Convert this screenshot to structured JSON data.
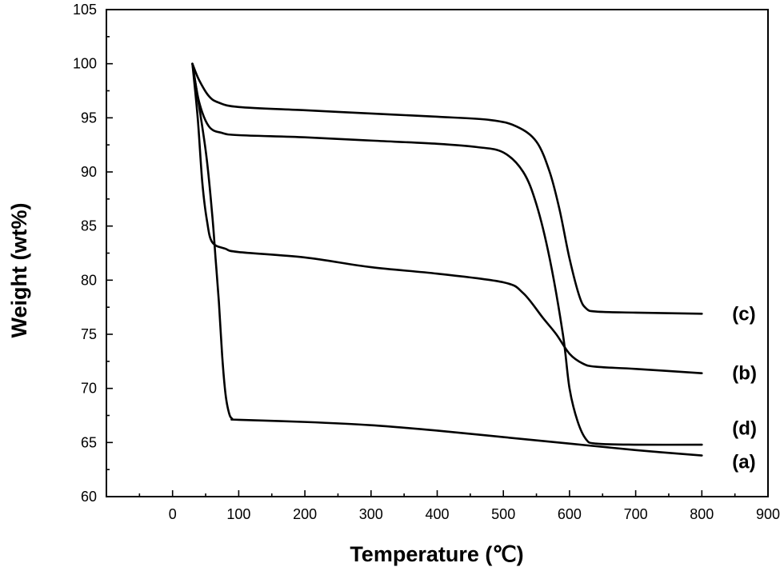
{
  "chart_data": {
    "type": "line",
    "xlabel": "Temperature (℃)",
    "ylabel": "Weight (wt%)",
    "xlim": [
      -100,
      900
    ],
    "ylim": [
      60,
      105
    ],
    "xticks": [
      0,
      100,
      200,
      300,
      400,
      500,
      600,
      700,
      800,
      900
    ],
    "yticks": [
      60,
      65,
      70,
      75,
      80,
      85,
      90,
      95,
      100,
      105
    ],
    "grid": false,
    "legend": "none",
    "series": [
      {
        "name": "(a)",
        "points": [
          [
            30,
            100
          ],
          [
            50,
            92
          ],
          [
            60,
            86
          ],
          [
            65,
            82
          ],
          [
            70,
            78
          ],
          [
            75,
            73
          ],
          [
            80,
            69.5
          ],
          [
            85,
            67.8
          ],
          [
            90,
            67.2
          ],
          [
            100,
            67.1
          ],
          [
            200,
            66.9
          ],
          [
            300,
            66.6
          ],
          [
            400,
            66.1
          ],
          [
            500,
            65.5
          ],
          [
            600,
            64.9
          ],
          [
            700,
            64.3
          ],
          [
            800,
            63.8
          ]
        ]
      },
      {
        "name": "(b)",
        "points": [
          [
            30,
            100
          ],
          [
            38,
            95
          ],
          [
            45,
            89
          ],
          [
            52,
            85.5
          ],
          [
            60,
            83.5
          ],
          [
            80,
            82.9
          ],
          [
            100,
            82.6
          ],
          [
            200,
            82.1
          ],
          [
            300,
            81.2
          ],
          [
            400,
            80.6
          ],
          [
            500,
            79.8
          ],
          [
            530,
            78.8
          ],
          [
            560,
            76.5
          ],
          [
            580,
            75
          ],
          [
            600,
            73.2
          ],
          [
            620,
            72.3
          ],
          [
            640,
            72
          ],
          [
            700,
            71.8
          ],
          [
            800,
            71.4
          ]
        ]
      },
      {
        "name": "(c)",
        "points": [
          [
            30,
            100
          ],
          [
            40,
            98.5
          ],
          [
            55,
            97
          ],
          [
            70,
            96.4
          ],
          [
            100,
            96
          ],
          [
            200,
            95.7
          ],
          [
            300,
            95.4
          ],
          [
            400,
            95.1
          ],
          [
            480,
            94.8
          ],
          [
            520,
            94.2
          ],
          [
            550,
            92.8
          ],
          [
            570,
            90
          ],
          [
            585,
            86.5
          ],
          [
            600,
            82
          ],
          [
            615,
            78.5
          ],
          [
            625,
            77.4
          ],
          [
            640,
            77.1
          ],
          [
            700,
            77
          ],
          [
            800,
            76.9
          ]
        ]
      },
      {
        "name": "(d)",
        "points": [
          [
            30,
            100
          ],
          [
            40,
            96.5
          ],
          [
            55,
            94.2
          ],
          [
            75,
            93.6
          ],
          [
            100,
            93.4
          ],
          [
            200,
            93.2
          ],
          [
            300,
            92.9
          ],
          [
            400,
            92.6
          ],
          [
            460,
            92.3
          ],
          [
            500,
            91.8
          ],
          [
            530,
            90
          ],
          [
            550,
            87
          ],
          [
            570,
            82
          ],
          [
            590,
            75
          ],
          [
            600,
            70
          ],
          [
            612,
            67
          ],
          [
            625,
            65.3
          ],
          [
            640,
            64.9
          ],
          [
            700,
            64.8
          ],
          [
            800,
            64.8
          ]
        ]
      }
    ]
  }
}
